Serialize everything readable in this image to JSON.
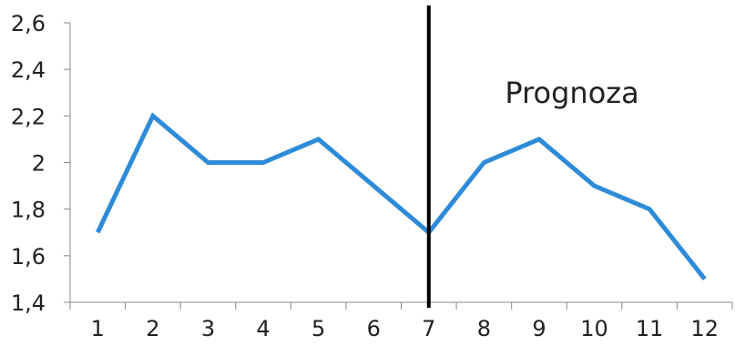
{
  "chart_data": {
    "type": "line",
    "title": "",
    "xlabel": "",
    "ylabel": "",
    "categories": [
      "1",
      "2",
      "3",
      "4",
      "5",
      "6",
      "7",
      "8",
      "9",
      "10",
      "11",
      "12"
    ],
    "series": [
      {
        "values": [
          1.7,
          2.2,
          2.0,
          2.0,
          2.1,
          1.9,
          1.7,
          2.0,
          2.1,
          1.9,
          1.8,
          1.5
        ]
      }
    ],
    "ylim": [
      1.4,
      2.6
    ],
    "yticks": [
      1.4,
      1.6,
      1.8,
      2.0,
      2.2,
      2.4,
      2.6
    ],
    "ytick_labels": [
      "1,4",
      "1,6",
      "1,8",
      "2",
      "2,2",
      "2,4",
      "2,6"
    ],
    "grid": false,
    "divider_after_category": "7",
    "annotation": "Prognoza",
    "line_color": "#2E8BD8",
    "divider_color": "#000000"
  }
}
